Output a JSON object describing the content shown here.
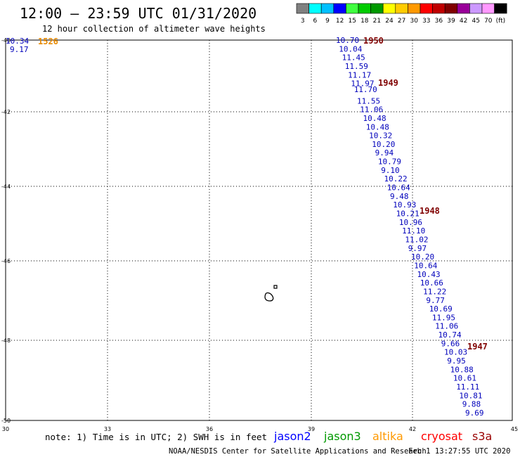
{
  "header": {
    "title": "12:00 – 23:59 UTC 01/31/2020",
    "subtitle": "12 hour collection of altimeter wave heights"
  },
  "legend": {
    "colors": [
      "#808080",
      "#00ffff",
      "#00c0ff",
      "#0000ff",
      "#40ff40",
      "#00cc00",
      "#009900",
      "#ffff00",
      "#ffcc00",
      "#ff9900",
      "#ff0000",
      "#c00000",
      "#800000",
      "#990099",
      "#cc99ff",
      "#ff99ff",
      "#000000"
    ],
    "labels": [
      "3",
      "6",
      "9",
      "12",
      "15",
      "18",
      "21",
      "24",
      "27",
      "30",
      "33",
      "36",
      "39",
      "42",
      "45",
      "70",
      "(ft)"
    ]
  },
  "map": {
    "lon_ticks": [
      "30",
      "33",
      "36",
      "39",
      "42",
      "45"
    ],
    "lat_ticks": [
      "-40",
      "-42",
      "-44",
      "-46",
      "-48",
      "-50"
    ],
    "grid": true
  },
  "tracks": [
    {
      "satellite": "altika",
      "color": "#e88a00",
      "time_label": "1526",
      "values": [
        "10.34",
        "9.17"
      ]
    },
    {
      "satellite": "jason2",
      "color": "#0000bb",
      "time_labels": [
        "1950",
        "1949",
        "1948",
        "1947"
      ],
      "values": [
        "10.70",
        "10.04",
        "11.45",
        "11.59",
        "11.17",
        "11.97",
        "11.70",
        "11.55",
        "11.06",
        "10.48",
        "10.48",
        "10.32",
        "10.20",
        "9.94",
        "10.79",
        "9.10",
        "10.22",
        "10.64",
        "9.48",
        "10.93",
        "10.21",
        "10.96",
        "11.10",
        "11.02",
        "9.97",
        "10.20",
        "10.64",
        "10.43",
        "10.66",
        "11.22",
        "9.77",
        "10.69",
        "11.95",
        "11.06",
        "10.74",
        "9.66",
        "10.03",
        "9.95",
        "10.88",
        "10.61",
        "11.11",
        "10.81",
        "9.88",
        "9.69"
      ]
    }
  ],
  "time_label_color": "#800000",
  "footer": {
    "note": "note:  1) Time is in UTC;  2) SWH is in feet",
    "satellites": [
      {
        "name": "jason2",
        "color": "#0000ff"
      },
      {
        "name": "jason3",
        "color": "#009900"
      },
      {
        "name": "altika",
        "color": "#ff9900"
      },
      {
        "name": "cryosat",
        "color": "#ff0000"
      },
      {
        "name": "s3a",
        "color": "#990000"
      }
    ],
    "credit": "NOAA/NESDIS Center for Satellite Applications and Research",
    "timestamp": "Feb  1 13:27:55 UTC 2020"
  }
}
